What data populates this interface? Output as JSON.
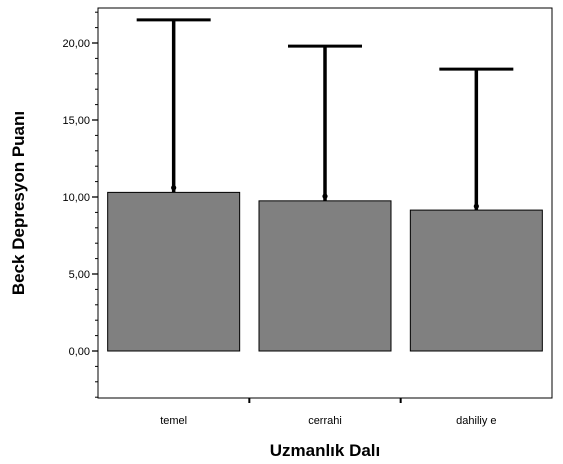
{
  "chart_data": {
    "type": "bar",
    "categories": [
      "temel",
      "cerrahi",
      "dahiliy e"
    ],
    "values": [
      10.3,
      9.75,
      9.15
    ],
    "error_top": [
      21.5,
      19.8,
      18.3
    ],
    "point_markers": [
      10.6,
      10.05,
      9.4
    ],
    "xlabel": "Uzmanlık Dalı",
    "ylabel": "Beck Depresyon Puanı",
    "ylim": [
      -3.0,
      22.5
    ],
    "yticks": [
      0,
      5,
      10,
      15,
      20
    ],
    "ytick_labels": [
      "0,00",
      "5,00",
      "10,00",
      "15,00",
      "20,00"
    ],
    "bar_color": "#808080",
    "error_bar_color": "#000000"
  }
}
